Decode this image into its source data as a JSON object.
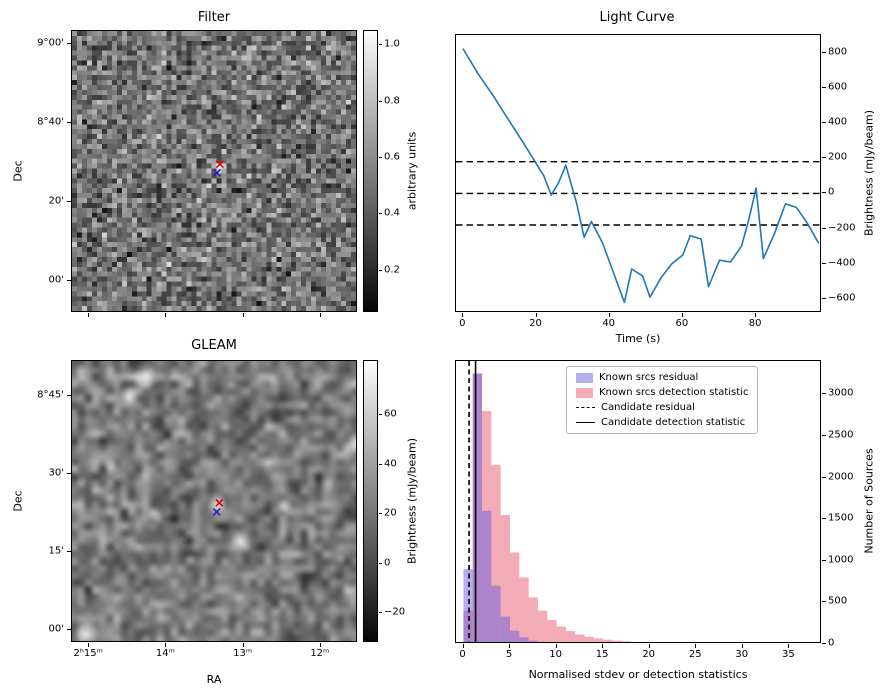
{
  "figure": {
    "background": "#ffffff"
  },
  "chart_data": [
    {
      "type": "heatmap",
      "title": "Filter",
      "ylabel": "Dec",
      "yticks": [
        "9°00'",
        "8°40'",
        "20'",
        "00'"
      ],
      "colorbar": {
        "label": "arbitrary units",
        "ticks": [
          1.0,
          0.8,
          0.6,
          0.4,
          0.2
        ],
        "range": [
          0.05,
          1.05
        ]
      },
      "markers": [
        {
          "color": "#e00000",
          "fx": 0.517,
          "fy": 0.472
        },
        {
          "color": "#2a22bb",
          "fx": 0.507,
          "fy": 0.503
        }
      ]
    },
    {
      "type": "line",
      "title": "Light Curve",
      "xlabel": "Time (s)",
      "ylabel": "Brightness (mJy/beam)",
      "line_color": "#1f77b4",
      "x": [
        0,
        4,
        8,
        12,
        16,
        19,
        22,
        24,
        26,
        28,
        31,
        33,
        35,
        38,
        41,
        44,
        46,
        49,
        51,
        54,
        57,
        60,
        62,
        65,
        67,
        70,
        73,
        76,
        78,
        80,
        82,
        85,
        88,
        91,
        94,
        97
      ],
      "y": [
        820,
        680,
        560,
        430,
        300,
        200,
        100,
        -10,
        60,
        160,
        -60,
        -250,
        -160,
        -280,
        -450,
        -620,
        -430,
        -470,
        -590,
        -480,
        -400,
        -350,
        -240,
        -260,
        -530,
        -380,
        -390,
        -300,
        -150,
        30,
        -370,
        -230,
        -60,
        -80,
        -170,
        -280
      ],
      "hlines": [
        180,
        0,
        -180
      ],
      "xticks": [
        0,
        20,
        40,
        60,
        80
      ],
      "yticks": [
        800,
        600,
        400,
        200,
        0,
        -200,
        -400,
        -600
      ],
      "xlim": [
        -2,
        98
      ],
      "ylim": [
        -680,
        900
      ]
    },
    {
      "type": "heatmap",
      "title": "GLEAM",
      "xlabel": "RA",
      "ylabel": "Dec",
      "xticks": [
        "2ʰ15ᵐ",
        "14ᵐ",
        "13ᵐ",
        "12ᵐ"
      ],
      "yticks": [
        "8°45'",
        "30'",
        "15'",
        "00'"
      ],
      "colorbar": {
        "label": "Brightness (mJy/beam)",
        "ticks": [
          60,
          40,
          20,
          0,
          -20
        ],
        "range": [
          -32,
          82
        ]
      },
      "markers": [
        {
          "color": "#e00000",
          "fx": 0.515,
          "fy": 0.503
        },
        {
          "color": "#2a22bb",
          "fx": 0.506,
          "fy": 0.535
        }
      ]
    },
    {
      "type": "bar",
      "xlabel": "Normalised stdev or detection statistics",
      "ylabel": "Number of Sources",
      "bin_start": 0,
      "bin_width": 1,
      "series": [
        {
          "name": "Known srcs residual",
          "color": "rgba(104,94,222,0.5)",
          "values": [
            900,
            3250,
            1600,
            700,
            330,
            160,
            80,
            40,
            20,
            10,
            5,
            3,
            2,
            1,
            1,
            0,
            0,
            0,
            0,
            0,
            0,
            0,
            0,
            0,
            0,
            0,
            0,
            0,
            0,
            0,
            0,
            0,
            0,
            0,
            0,
            0,
            0,
            0
          ]
        },
        {
          "name": "Known srcs detection statistic",
          "color": "rgba(232,88,110,0.5)",
          "values": [
            400,
            3250,
            2800,
            2150,
            1550,
            1100,
            800,
            560,
            400,
            290,
            210,
            155,
            115,
            88,
            68,
            52,
            40,
            31,
            24,
            19,
            15,
            12,
            9,
            7,
            6,
            5,
            4,
            3,
            3,
            2,
            2,
            2,
            1,
            1,
            1,
            1,
            1,
            1
          ]
        }
      ],
      "vlines": [
        {
          "label": "Candidate residual",
          "style": "dashed",
          "x": 0.6
        },
        {
          "label": "Candidate detection statistic",
          "style": "solid",
          "x": 1.3
        }
      ],
      "xticks": [
        0,
        5,
        10,
        15,
        20,
        25,
        30,
        35
      ],
      "yticks": [
        0,
        500,
        1000,
        1500,
        2000,
        2500,
        3000
      ],
      "xlim": [
        -0.8,
        38.5
      ],
      "ylim": [
        0,
        3400
      ],
      "legend_position": "upper right"
    }
  ]
}
